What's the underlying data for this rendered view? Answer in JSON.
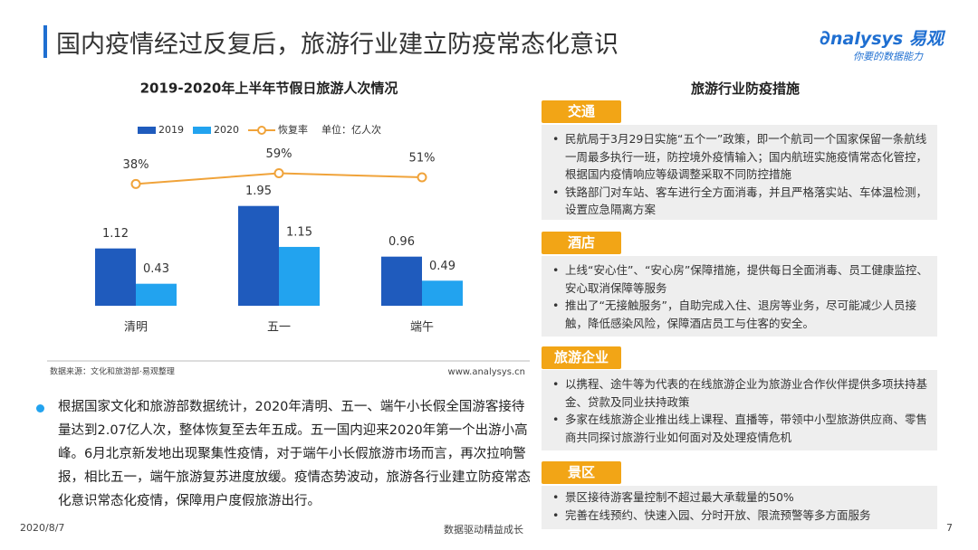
{
  "header": {
    "title": "国内疫情经过反复后，旅游行业建立防疫常态化意识",
    "logo": "nalysys",
    "logo_cn": "易观",
    "slogan": "你要的数据能力"
  },
  "chart_data": {
    "type": "bar",
    "title": "2019-2020年上半年节假日旅游人次情况",
    "unit_label": "单位：亿人次",
    "categories": [
      "清明",
      "五一",
      "端午"
    ],
    "series": [
      {
        "name": "2019",
        "color": "#1f5bbd",
        "values": [
          1.12,
          1.95,
          0.96
        ]
      },
      {
        "name": "2020",
        "color": "#22a3ef",
        "values": [
          0.43,
          1.15,
          0.49
        ]
      },
      {
        "name": "恢复率",
        "type": "line",
        "axis": "y2",
        "color": "#f0a33a",
        "values": [
          38,
          59,
          51
        ],
        "value_labels": [
          "38%",
          "59%",
          "51%"
        ]
      }
    ],
    "ylim": [
      0,
      3.5
    ],
    "y2lim": [
      -200,
      150
    ],
    "source": "数据来源：文化和旅游部·易观整理",
    "site": "www.analysys.cn"
  },
  "panel": {
    "title": "旅游行业防疫措施",
    "sections": [
      {
        "tag": "交通",
        "items": [
          "民航局于3月29日实施“五个一”政策，即一个航司一个国家保留一条航线一周最多执行一班，防控境外疫情输入；国内航班实施疫情常态化管控，根据国内疫情响应等级调整采取不同防控措施",
          "铁路部门对车站、客车进行全方面消毒，并且严格落实站、车体温检测，设置应急隔离方案"
        ]
      },
      {
        "tag": "酒店",
        "items": [
          "上线“安心住”、“安心房”保障措施，提供每日全面消毒、员工健康监控、安心取消保障等服务",
          "推出了“无接触服务”，自助完成入住、退房等业务，尽可能减少人员接触，降低感染风险，保障酒店员工与住客的安全。"
        ]
      },
      {
        "tag": "旅游企业",
        "items": [
          "以携程、途牛等为代表的在线旅游企业为旅游业合作伙伴提供多项扶持基金、贷款及同业扶持政策",
          "多家在线旅游企业推出线上课程、直播等，带领中小型旅游供应商、零售商共同探讨旅游行业如何面对及处理疫情危机"
        ]
      },
      {
        "tag": "景区",
        "items": [
          "景区接待游客量控制不超过最大承载量的50%",
          "完善在线预约、快速入园、分时开放、限流预警等多方面服务"
        ]
      }
    ]
  },
  "summary": "根据国家文化和旅游部数据统计，2020年清明、五一、端午小长假全国游客接待量达到2.07亿人次，整体恢复至去年五成。五一国内迎来2020年第一个出游小高峰。6月北京新发地出现聚集性疫情，对于端午小长假旅游市场而言，再次拉响警报，相比五一，端午旅游复苏进度放缓。疫情态势波动，旅游各行业建立防疫常态化意识常态化疫情，保障用户度假旅游出行。",
  "footer": {
    "date": "2020/8/7",
    "motto": "数据驱动精益成长",
    "page": "7"
  }
}
